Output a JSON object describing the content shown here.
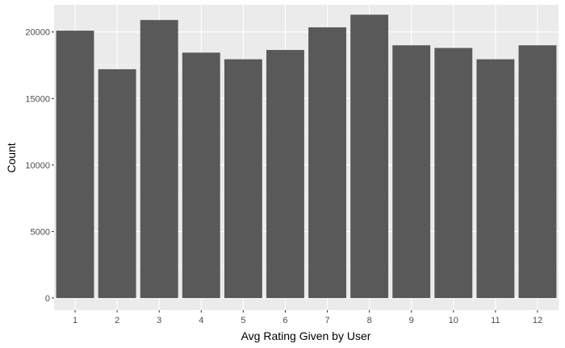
{
  "chart_data": {
    "type": "bar",
    "xlabel": "Avg Rating Given by User",
    "ylabel": "Count",
    "categories": [
      "1",
      "2",
      "3",
      "4",
      "5",
      "6",
      "7",
      "8",
      "9",
      "10",
      "11",
      "12"
    ],
    "values": [
      20100,
      17200,
      20900,
      18450,
      17950,
      18650,
      20350,
      21300,
      19000,
      18800,
      17950,
      19000
    ],
    "ylim": [
      0,
      21800
    ],
    "yticks": [
      0,
      5000,
      10000,
      15000,
      20000
    ],
    "ytick_labels": [
      "0",
      "5000",
      "10000",
      "15000",
      "20000"
    ],
    "grid": true,
    "colors": {
      "bar": "#595959",
      "panel": "#ebebeb",
      "grid_major": "#ffffff",
      "grid_minor": "#f5f5f5"
    }
  }
}
